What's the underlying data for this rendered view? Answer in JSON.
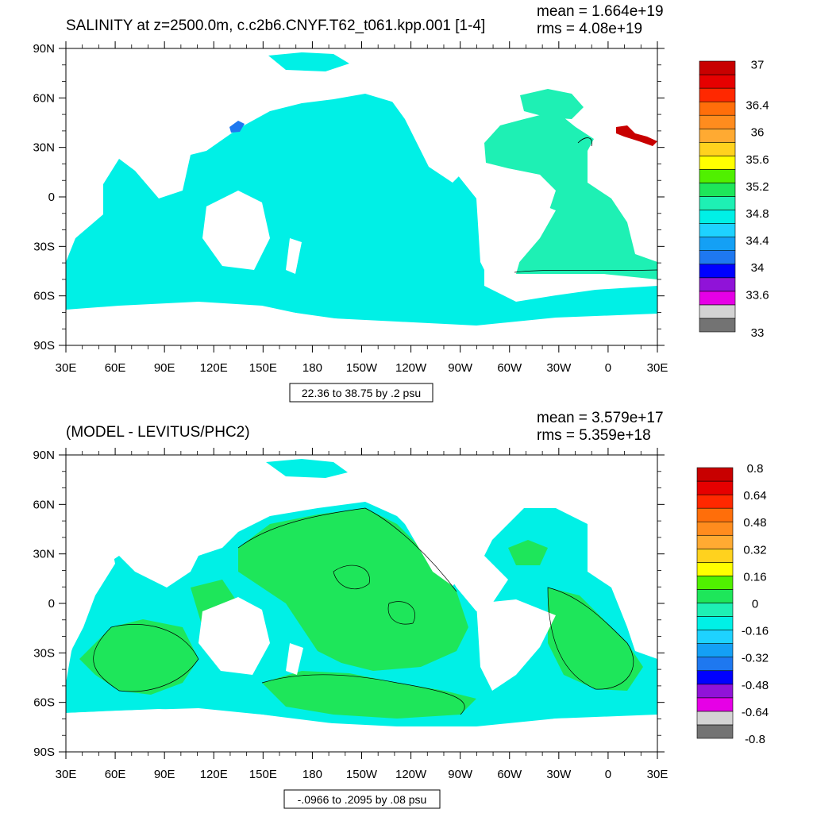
{
  "chart_data": [
    {
      "type": "heatmap",
      "title": "SALINITY at z=2500.0m, c.c2b6.CNYF.T62_t061.kpp.001 [1-4]",
      "stats": {
        "mean": "mean = 1.664e+19",
        "rms": "rms = 4.08e+19"
      },
      "x_ticks": [
        "30E",
        "60E",
        "90E",
        "120E",
        "150E",
        "180",
        "150W",
        "120W",
        "90W",
        "60W",
        "30W",
        "0",
        "30E"
      ],
      "y_ticks": [
        "90N",
        "60N",
        "30N",
        "0",
        "30S",
        "60S",
        "90S"
      ],
      "xlim": [
        30,
        390
      ],
      "ylim": [
        -90,
        90
      ],
      "range_note": "22.36 to 38.75 by .2 psu",
      "units": "psu",
      "colorbar": {
        "colors": [
          "#737373",
          "#d3d3d3",
          "#e600e6",
          "#9013d8",
          "#0000ff",
          "#1e78f0",
          "#14a0f5",
          "#1ed2ff",
          "#00f0e6",
          "#1ef0b4",
          "#1ee65a",
          "#50f000",
          "#ffff00",
          "#ffd21e",
          "#ffaa32",
          "#ff8c1e",
          "#ff6e0a",
          "#ff2800",
          "#e60000",
          "#c80000"
        ],
        "labels": [
          {
            "text": "33",
            "level": 0
          },
          {
            "text": "33.6",
            "level": 2.8
          },
          {
            "text": "34",
            "level": 4.8
          },
          {
            "text": "34.4",
            "level": 6.8
          },
          {
            "text": "34.8",
            "level": 8.8
          },
          {
            "text": "35.2",
            "level": 10.8
          },
          {
            "text": "35.6",
            "level": 12.8
          },
          {
            "text": "36",
            "level": 14.8
          },
          {
            "text": "36.4",
            "level": 16.8
          },
          {
            "text": "37",
            "level": 19.8
          }
        ]
      }
    },
    {
      "type": "heatmap",
      "title": "(MODEL - LEVITUS/PHC2)",
      "stats": {
        "mean": "mean = 3.579e+17",
        "rms": "rms = 5.359e+18"
      },
      "x_ticks": [
        "30E",
        "60E",
        "90E",
        "120E",
        "150E",
        "180",
        "150W",
        "120W",
        "90W",
        "60W",
        "30W",
        "0",
        "30E"
      ],
      "y_ticks": [
        "90N",
        "60N",
        "30N",
        "0",
        "30S",
        "60S",
        "90S"
      ],
      "xlim": [
        30,
        390
      ],
      "ylim": [
        -90,
        90
      ],
      "range_note": "-.0966 to .2095 by .08 psu",
      "units": "psu",
      "colorbar": {
        "colors": [
          "#737373",
          "#d3d3d3",
          "#e600e6",
          "#9013d8",
          "#0000ff",
          "#1e78f0",
          "#14a0f5",
          "#1ed2ff",
          "#00f0e6",
          "#1ef0b4",
          "#1ee65a",
          "#50f000",
          "#ffff00",
          "#ffd21e",
          "#ffaa32",
          "#ff8c1e",
          "#ff6e0a",
          "#ff2800",
          "#e60000",
          "#c80000"
        ],
        "labels": [
          {
            "text": "-0.8",
            "level": 0
          },
          {
            "text": "-0.64",
            "level": 2
          },
          {
            "text": "-0.48",
            "level": 4
          },
          {
            "text": "-0.32",
            "level": 6
          },
          {
            "text": "-0.16",
            "level": 8
          },
          {
            "text": "0",
            "level": 10
          },
          {
            "text": "0.16",
            "level": 12
          },
          {
            "text": "0.32",
            "level": 14
          },
          {
            "text": "0.48",
            "level": 16
          },
          {
            "text": "0.64",
            "level": 18
          },
          {
            "text": "0.8",
            "level": 20
          }
        ]
      }
    }
  ]
}
